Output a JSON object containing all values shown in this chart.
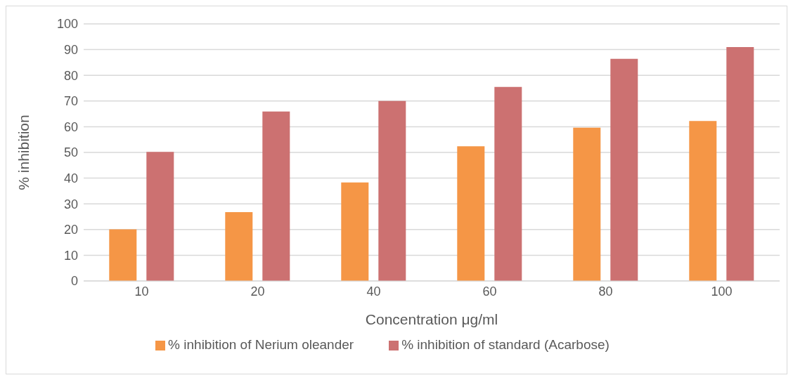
{
  "chart_data": {
    "type": "bar",
    "categories": [
      "10",
      "20",
      "40",
      "60",
      "80",
      "100"
    ],
    "series": [
      {
        "name": "% inhibition of Nerium oleander",
        "color": "#f59646",
        "values": [
          20.1,
          26.8,
          38.3,
          52.4,
          59.6,
          62.2
        ]
      },
      {
        "name": "% inhibition of standard (Acarbose)",
        "color": "#cc7171",
        "values": [
          50.2,
          65.9,
          70.0,
          75.5,
          86.4,
          91.0
        ]
      }
    ],
    "xlabel": "Concentration μg/ml",
    "ylabel": "% inhibition",
    "ylim": [
      0,
      100
    ],
    "yticks": [
      0,
      10,
      20,
      30,
      40,
      50,
      60,
      70,
      80,
      90,
      100
    ],
    "grid": "y",
    "legend": "bottom"
  }
}
